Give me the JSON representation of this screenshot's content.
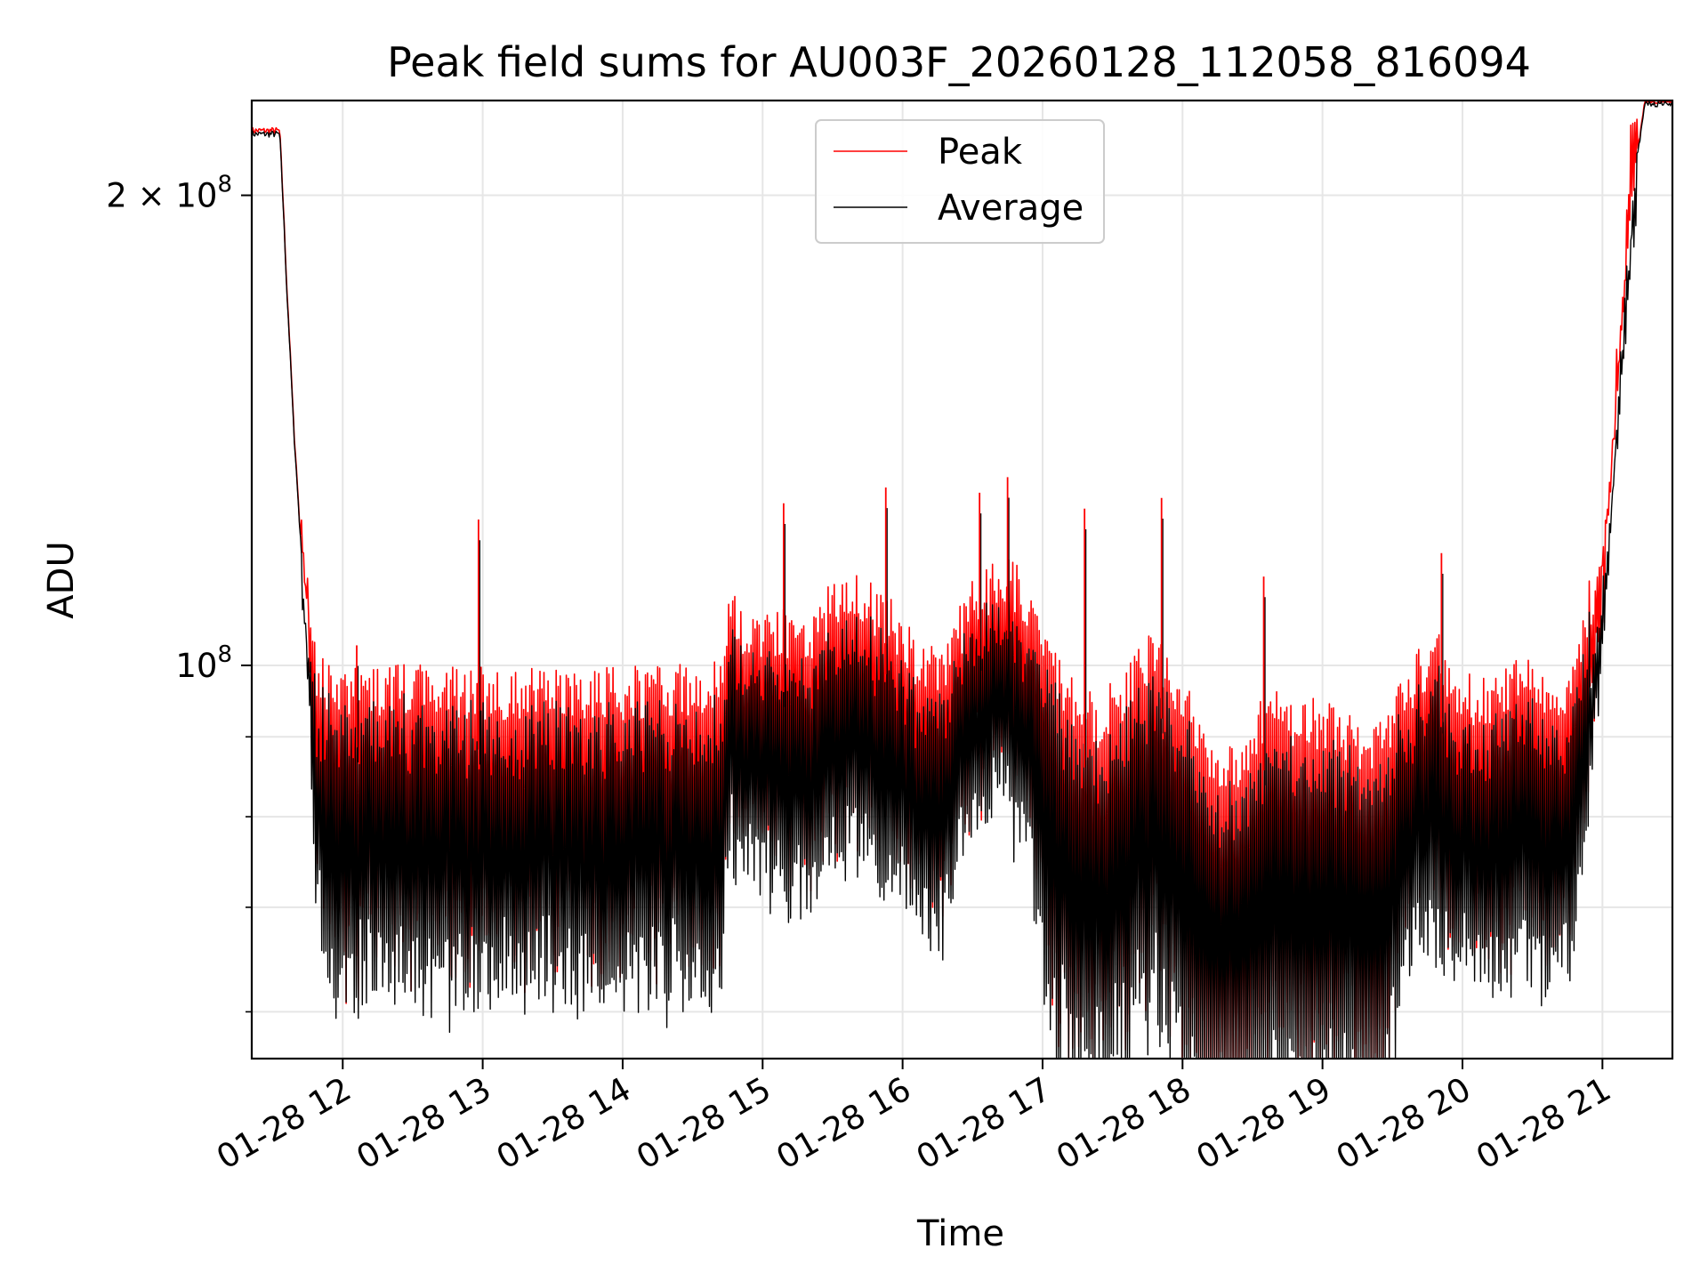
{
  "chart_data": {
    "type": "line",
    "title": "Peak field sums for AU003F_20260128_112058_816094",
    "xlabel": "Time",
    "ylabel": "ADU",
    "yscale": "log",
    "grid": true,
    "legend_position": "top-center",
    "colors": {
      "peak": "#ff0000",
      "average": "#000000"
    },
    "x_unit": "hours since 01-28 00:00",
    "xlim": [
      11.35,
      21.5
    ],
    "ylim": [
      56000000.0,
      230000000.0
    ],
    "x_ticks": [
      {
        "value": 12,
        "label": "01-28 12"
      },
      {
        "value": 13,
        "label": "01-28 13"
      },
      {
        "value": 14,
        "label": "01-28 14"
      },
      {
        "value": 15,
        "label": "01-28 15"
      },
      {
        "value": 16,
        "label": "01-28 16"
      },
      {
        "value": 17,
        "label": "01-28 17"
      },
      {
        "value": 18,
        "label": "01-28 18"
      },
      {
        "value": 19,
        "label": "01-28 19"
      },
      {
        "value": 20,
        "label": "01-28 20"
      },
      {
        "value": 21,
        "label": "01-28 21"
      }
    ],
    "y_major_ticks": [
      {
        "value": 100000000,
        "label": "10",
        "sup": "8"
      },
      {
        "value": 200000000,
        "label": "2 × 10",
        "sup": "8"
      }
    ],
    "y_minor_ticks": [
      60000000,
      70000000,
      80000000,
      90000000
    ],
    "envelope_x": [
      11.35,
      11.55,
      11.6,
      11.65,
      11.7,
      11.75,
      11.8,
      11.85,
      11.95,
      12.2,
      12.5,
      12.8,
      13.0,
      13.3,
      13.6,
      14.0,
      14.4,
      14.7,
      14.75,
      14.9,
      15.1,
      15.3,
      15.5,
      15.7,
      15.9,
      16.1,
      16.3,
      16.5,
      16.7,
      16.9,
      17.0,
      17.2,
      17.4,
      17.6,
      17.8,
      18.0,
      18.2,
      18.4,
      18.6,
      18.8,
      19.0,
      19.2,
      19.4,
      19.6,
      19.8,
      20.0,
      20.2,
      20.4,
      20.6,
      20.8,
      20.85,
      20.95,
      21.0,
      21.05,
      21.1,
      21.15,
      21.2,
      21.3,
      21.5
    ],
    "envelope_base": [
      220000000.0,
      220000000.0,
      175000000.0,
      142000000.0,
      120000000.0,
      108000000.0,
      100000000.0,
      98000000.0,
      96000000.0,
      96500000.0,
      96500000.0,
      96000000.0,
      96000000.0,
      96000000.0,
      96000000.0,
      96000000.0,
      96500000.0,
      97000000.0,
      108000000.0,
      104000000.0,
      105000000.0,
      103000000.0,
      109000000.0,
      110000000.0,
      107000000.0,
      100000000.0,
      100000000.0,
      109000000.0,
      114000000.0,
      110000000.0,
      103000000.0,
      95000000.0,
      92000000.0,
      96000000.0,
      102000000.0,
      96000000.0,
      88000000.0,
      85000000.0,
      94000000.0,
      91000000.0,
      92000000.0,
      90000000.0,
      88000000.0,
      96000000.0,
      102000000.0,
      96000000.0,
      94000000.0,
      98000000.0,
      95000000.0,
      96000000.0,
      105000000.0,
      112000000.0,
      118000000.0,
      130000000.0,
      148000000.0,
      168000000.0,
      195000000.0,
      230000000.0,
      230000000.0
    ],
    "envelope_depth": [
      0,
      0,
      0,
      0,
      0,
      0.08,
      0.25,
      0.3,
      0.34,
      0.34,
      0.34,
      0.34,
      0.34,
      0.34,
      0.34,
      0.34,
      0.34,
      0.34,
      0.28,
      0.28,
      0.3,
      0.3,
      0.3,
      0.3,
      0.3,
      0.3,
      0.3,
      0.26,
      0.26,
      0.3,
      0.38,
      0.4,
      0.4,
      0.4,
      0.4,
      0.42,
      0.48,
      0.48,
      0.4,
      0.42,
      0.42,
      0.42,
      0.42,
      0.34,
      0.32,
      0.32,
      0.32,
      0.32,
      0.32,
      0.3,
      0.28,
      0.2,
      0.14,
      0.08,
      0.04,
      0.02,
      0.01,
      0,
      0
    ],
    "series": [
      {
        "name": "Peak",
        "color": "#ff0000"
      },
      {
        "name": "Average",
        "color": "#000000"
      }
    ],
    "spikes": [
      {
        "x": 12.1,
        "value": 103000000.0
      },
      {
        "x": 12.97,
        "value": 124000000.0
      },
      {
        "x": 15.15,
        "value": 127000000.0
      },
      {
        "x": 15.88,
        "value": 130000000.0
      },
      {
        "x": 16.55,
        "value": 129000000.0
      },
      {
        "x": 16.75,
        "value": 132000000.0
      },
      {
        "x": 17.3,
        "value": 126000000.0
      },
      {
        "x": 17.85,
        "value": 128000000.0
      },
      {
        "x": 18.58,
        "value": 114000000.0
      },
      {
        "x": 19.85,
        "value": 118000000.0
      }
    ]
  }
}
